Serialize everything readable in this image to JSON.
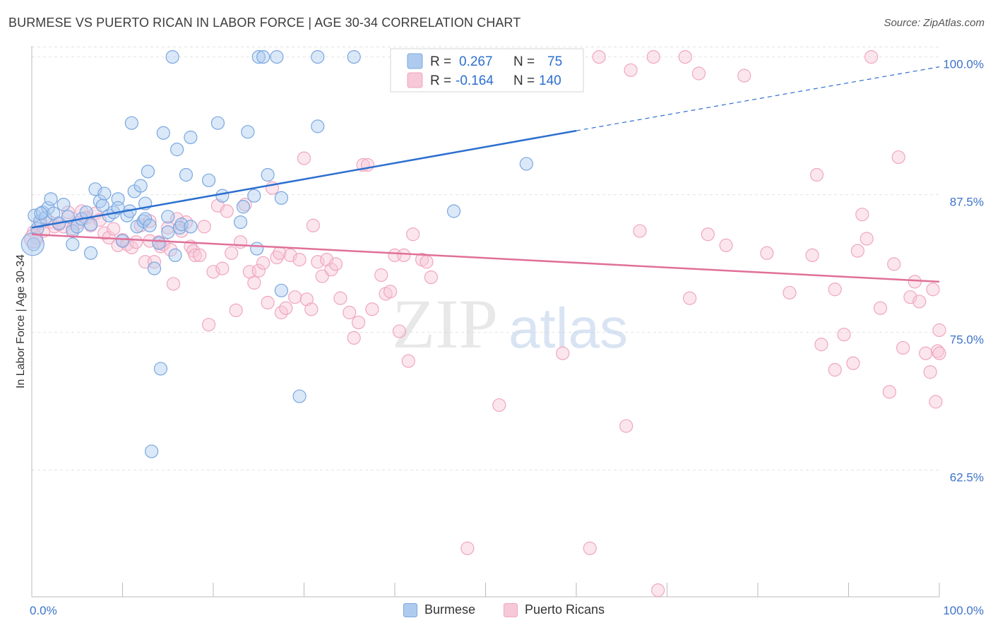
{
  "header": {
    "title": "BURMESE VS PUERTO RICAN IN LABOR FORCE | AGE 30-34 CORRELATION CHART",
    "source": "Source: ZipAtlas.com"
  },
  "watermark": {
    "zip": "ZIP",
    "atlas": "atlas"
  },
  "chart_data": {
    "type": "scatter",
    "title": "BURMESE VS PUERTO RICAN IN LABOR FORCE | AGE 30-34 CORRELATION CHART",
    "xlabel": "",
    "ylabel": "In Labor Force | Age 30-34",
    "xlim": [
      0,
      100
    ],
    "ylim": [
      51,
      101
    ],
    "x_tick_labels": [
      "0.0%",
      "100.0%"
    ],
    "y_ticks": [
      62.5,
      75.0,
      87.5,
      100.0
    ],
    "y_tick_labels": [
      "62.5%",
      "75.0%",
      "87.5%",
      "100.0%"
    ],
    "grid": true,
    "legend": {
      "position": "top-center",
      "entries": [
        {
          "r_label": "R =",
          "r_value": "0.267",
          "n_label": "N =",
          "n_value": "75"
        },
        {
          "r_label": "R =",
          "r_value": "-0.164",
          "n_label": "N =",
          "n_value": "140"
        }
      ]
    },
    "series": [
      {
        "name": "Burmese",
        "color": "#7aa7e0",
        "fill": "#aecbef",
        "line_color": "#2c6fcf",
        "r": 0.267,
        "n": 75,
        "trend": {
          "x": [
            0,
            60
          ],
          "y": [
            84.5,
            93.3
          ],
          "dashed_to": [
            100,
            99.1
          ]
        },
        "points": [
          [
            0.3,
            85.6
          ],
          [
            0.6,
            84.4
          ],
          [
            0.9,
            85.1
          ],
          [
            1.2,
            85.9
          ],
          [
            1.5,
            85.4
          ],
          [
            1.8,
            86.3
          ],
          [
            2.1,
            87.1
          ],
          [
            2.4,
            85.8
          ],
          [
            3.0,
            84.9
          ],
          [
            3.5,
            86.6
          ],
          [
            4.0,
            85.5
          ],
          [
            4.5,
            84.2
          ],
          [
            4.5,
            83.0
          ],
          [
            5.0,
            84.6
          ],
          [
            5.5,
            85.3
          ],
          [
            6.0,
            85.9
          ],
          [
            6.5,
            84.8
          ],
          [
            6.5,
            82.2
          ],
          [
            7.0,
            88.0
          ],
          [
            7.5,
            86.9
          ],
          [
            7.8,
            86.5
          ],
          [
            8.0,
            87.6
          ],
          [
            8.5,
            85.6
          ],
          [
            9.0,
            85.9
          ],
          [
            9.5,
            87.1
          ],
          [
            9.5,
            86.3
          ],
          [
            10.0,
            83.3
          ],
          [
            10.5,
            85.6
          ],
          [
            10.8,
            86.0
          ],
          [
            11.0,
            94.0
          ],
          [
            11.3,
            87.8
          ],
          [
            11.6,
            84.6
          ],
          [
            12.0,
            88.3
          ],
          [
            12.3,
            85.1
          ],
          [
            12.5,
            86.7
          ],
          [
            12.5,
            85.3
          ],
          [
            12.8,
            89.6
          ],
          [
            13.0,
            84.7
          ],
          [
            13.2,
            64.2
          ],
          [
            13.5,
            80.8
          ],
          [
            14.0,
            83.1
          ],
          [
            14.2,
            71.7
          ],
          [
            14.5,
            93.1
          ],
          [
            15.0,
            85.5
          ],
          [
            15.0,
            84.1
          ],
          [
            15.5,
            100.0
          ],
          [
            15.8,
            82.0
          ],
          [
            16.0,
            91.6
          ],
          [
            16.3,
            84.5
          ],
          [
            16.5,
            84.8
          ],
          [
            17.0,
            89.3
          ],
          [
            17.5,
            92.7
          ],
          [
            17.5,
            84.6
          ],
          [
            19.5,
            88.8
          ],
          [
            20.5,
            94.0
          ],
          [
            21.0,
            87.4
          ],
          [
            23.0,
            85.0
          ],
          [
            23.3,
            86.4
          ],
          [
            23.8,
            93.2
          ],
          [
            24.5,
            87.4
          ],
          [
            24.8,
            82.6
          ],
          [
            25.0,
            100.0
          ],
          [
            25.5,
            100.0
          ],
          [
            26.0,
            89.3
          ],
          [
            27.0,
            100.0
          ],
          [
            27.5,
            87.2
          ],
          [
            27.5,
            78.8
          ],
          [
            29.5,
            69.2
          ],
          [
            31.5,
            100.0
          ],
          [
            31.5,
            93.7
          ],
          [
            35.5,
            100.0
          ],
          [
            46.5,
            86.0
          ],
          [
            54.5,
            90.3
          ],
          [
            0.2,
            83.0
          ],
          [
            1.0,
            85.8
          ]
        ]
      },
      {
        "name": "Puerto Ricans",
        "color": "#f0a6c0",
        "fill": "#f7c8d8",
        "line_color": "#e07099",
        "r": -0.164,
        "n": 140,
        "trend": {
          "x": [
            0,
            100
          ],
          "y": [
            83.9,
            79.6
          ]
        },
        "points": [
          [
            0.2,
            84.1
          ],
          [
            0.5,
            83.6
          ],
          [
            1.0,
            84.9
          ],
          [
            1.3,
            84.2
          ],
          [
            2.0,
            85.0
          ],
          [
            2.5,
            84.6
          ],
          [
            3.0,
            84.8
          ],
          [
            3.5,
            84.6
          ],
          [
            4.0,
            85.9
          ],
          [
            4.5,
            84.4
          ],
          [
            5.0,
            84.9
          ],
          [
            5.5,
            86.0
          ],
          [
            6.0,
            85.4
          ],
          [
            6.5,
            84.7
          ],
          [
            7.0,
            85.8
          ],
          [
            7.5,
            85.2
          ],
          [
            8.0,
            84.0
          ],
          [
            8.5,
            83.6
          ],
          [
            9.0,
            84.4
          ],
          [
            9.5,
            82.9
          ],
          [
            10.0,
            83.4
          ],
          [
            10.5,
            83.0
          ],
          [
            11.0,
            82.7
          ],
          [
            11.5,
            83.2
          ],
          [
            12.0,
            84.7
          ],
          [
            12.5,
            81.4
          ],
          [
            13.0,
            83.3
          ],
          [
            13.0,
            85.1
          ],
          [
            13.5,
            81.4
          ],
          [
            14.0,
            83.2
          ],
          [
            14.2,
            82.8
          ],
          [
            14.5,
            83.0
          ],
          [
            15.0,
            84.5
          ],
          [
            15.3,
            82.5
          ],
          [
            15.6,
            79.4
          ],
          [
            16.0,
            85.3
          ],
          [
            16.5,
            84.2
          ],
          [
            17.0,
            85.0
          ],
          [
            17.5,
            82.8
          ],
          [
            17.8,
            82.4
          ],
          [
            18.0,
            82.0
          ],
          [
            18.5,
            82.0
          ],
          [
            19.0,
            84.6
          ],
          [
            19.5,
            75.7
          ],
          [
            20.0,
            80.5
          ],
          [
            20.5,
            86.5
          ],
          [
            21.0,
            80.8
          ],
          [
            21.5,
            86.0
          ],
          [
            22.0,
            82.2
          ],
          [
            22.5,
            77.0
          ],
          [
            23.0,
            83.2
          ],
          [
            23.5,
            86.6
          ],
          [
            24.0,
            80.5
          ],
          [
            24.5,
            79.5
          ],
          [
            25.0,
            80.6
          ],
          [
            25.5,
            81.3
          ],
          [
            26.0,
            77.7
          ],
          [
            26.5,
            88.1
          ],
          [
            27.0,
            81.8
          ],
          [
            27.3,
            82.2
          ],
          [
            27.5,
            76.8
          ],
          [
            28.0,
            77.2
          ],
          [
            28.5,
            82.0
          ],
          [
            29.0,
            78.2
          ],
          [
            29.5,
            81.6
          ],
          [
            30.0,
            90.8
          ],
          [
            30.3,
            78.0
          ],
          [
            30.8,
            77.1
          ],
          [
            31.0,
            84.7
          ],
          [
            31.5,
            81.4
          ],
          [
            32.0,
            80.1
          ],
          [
            32.5,
            81.6
          ],
          [
            33.0,
            80.7
          ],
          [
            33.5,
            81.2
          ],
          [
            34.0,
            78.1
          ],
          [
            35.0,
            76.8
          ],
          [
            35.5,
            74.5
          ],
          [
            36.0,
            75.9
          ],
          [
            36.5,
            90.2
          ],
          [
            37.0,
            90.2
          ],
          [
            37.5,
            77.1
          ],
          [
            38.5,
            80.2
          ],
          [
            39.0,
            78.5
          ],
          [
            39.5,
            78.7
          ],
          [
            40.0,
            82.0
          ],
          [
            40.5,
            75.1
          ],
          [
            41.0,
            82.0
          ],
          [
            41.5,
            72.4
          ],
          [
            42.0,
            83.9
          ],
          [
            43.0,
            81.6
          ],
          [
            43.5,
            81.4
          ],
          [
            44.0,
            80.0
          ],
          [
            45.0,
            100.0
          ],
          [
            47.5,
            100.0
          ],
          [
            48.0,
            55.4
          ],
          [
            51.5,
            68.4
          ],
          [
            55.5,
            100.0
          ],
          [
            58.0,
            100.0
          ],
          [
            58.5,
            73.1
          ],
          [
            61.5,
            55.4
          ],
          [
            62.5,
            100.0
          ],
          [
            65.5,
            66.5
          ],
          [
            66.0,
            98.8
          ],
          [
            67.0,
            84.2
          ],
          [
            69.0,
            51.6
          ],
          [
            68.5,
            100.0
          ],
          [
            72.0,
            100.0
          ],
          [
            72.5,
            78.1
          ],
          [
            73.5,
            98.5
          ],
          [
            74.5,
            83.9
          ],
          [
            76.5,
            82.9
          ],
          [
            78.5,
            98.3
          ],
          [
            81.0,
            82.2
          ],
          [
            83.5,
            78.6
          ],
          [
            86.0,
            82.0
          ],
          [
            86.5,
            89.3
          ],
          [
            87.0,
            73.9
          ],
          [
            88.5,
            78.9
          ],
          [
            88.5,
            71.6
          ],
          [
            89.5,
            74.8
          ],
          [
            90.5,
            72.2
          ],
          [
            91.0,
            82.4
          ],
          [
            91.5,
            85.7
          ],
          [
            92.0,
            83.5
          ],
          [
            92.5,
            100.0
          ],
          [
            93.5,
            77.2
          ],
          [
            94.5,
            69.6
          ],
          [
            95.0,
            81.2
          ],
          [
            95.5,
            90.9
          ],
          [
            96.0,
            73.6
          ],
          [
            96.8,
            78.2
          ],
          [
            97.3,
            79.6
          ],
          [
            97.8,
            77.8
          ],
          [
            98.5,
            73.1
          ],
          [
            99.0,
            71.4
          ],
          [
            99.3,
            78.9
          ],
          [
            99.6,
            68.7
          ],
          [
            99.8,
            73.3
          ],
          [
            100.0,
            75.2
          ],
          [
            100.0,
            73.1
          ]
        ]
      }
    ]
  }
}
